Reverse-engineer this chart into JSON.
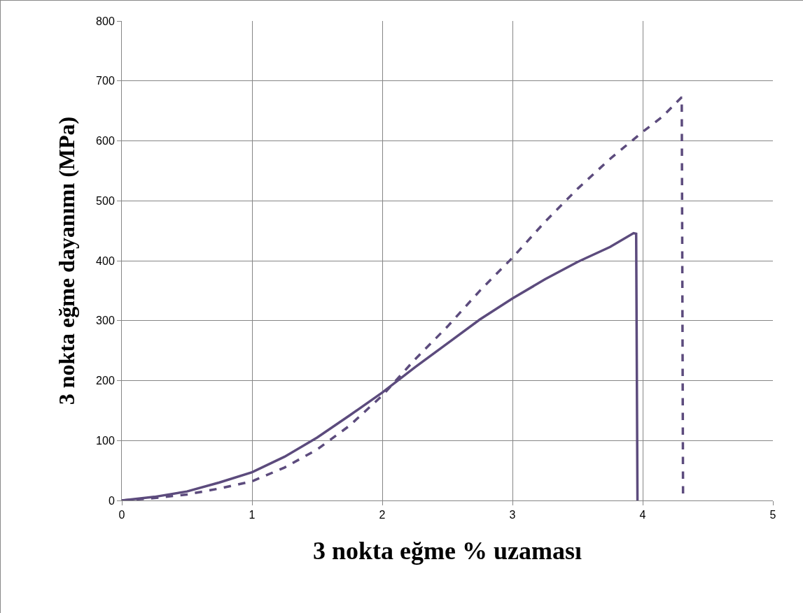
{
  "chart_data": {
    "type": "line",
    "xlabel": "3 nokta eğme % uzaması",
    "ylabel": "3 nokta eğme dayanımı (MPa)",
    "xlim": [
      0,
      5
    ],
    "xticks": [
      0,
      1,
      2,
      3,
      4,
      5
    ],
    "ylim": [
      0,
      800
    ],
    "yticks": [
      0,
      100,
      200,
      300,
      400,
      500,
      600,
      700,
      800
    ],
    "grid": true,
    "marker": "none",
    "series": [
      {
        "color": "#5c4b7d",
        "line_style": "solid",
        "x": [
          0,
          0.25,
          0.5,
          0.75,
          1,
          1.25,
          1.5,
          1.75,
          2,
          2.25,
          2.5,
          2.75,
          3,
          3.25,
          3.5,
          3.75,
          3.93,
          3.95,
          3.96
        ],
        "values": [
          0,
          6,
          15,
          30,
          47,
          73,
          105,
          142,
          180,
          222,
          262,
          302,
          337,
          369,
          398,
          423,
          446,
          445,
          0
        ]
      },
      {
        "color": "#5c4b7d",
        "line_style": "dashed",
        "x": [
          0,
          0.25,
          0.5,
          0.75,
          1,
          1.25,
          1.5,
          1.75,
          2,
          2.25,
          2.5,
          2.75,
          3,
          3.25,
          3.5,
          3.75,
          4,
          4.15,
          4.3,
          4.31
        ],
        "values": [
          0,
          4,
          10,
          20,
          32,
          55,
          85,
          125,
          175,
          235,
          290,
          350,
          405,
          465,
          520,
          570,
          615,
          640,
          673,
          10
        ]
      }
    ]
  }
}
